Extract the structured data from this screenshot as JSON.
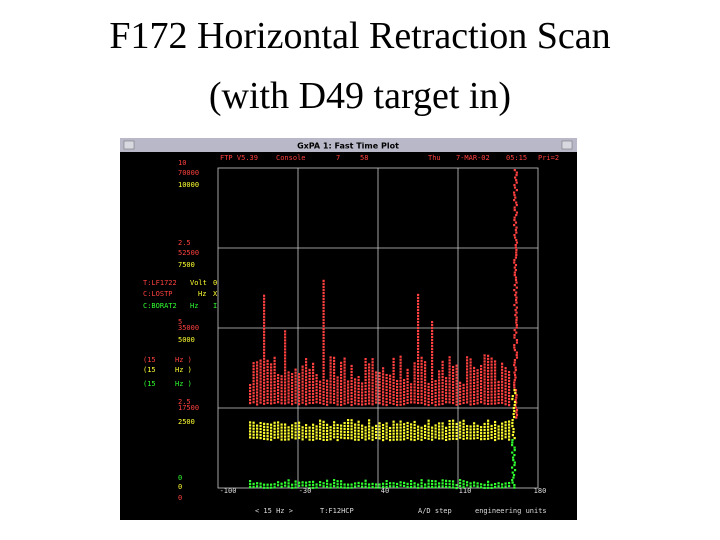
{
  "header": {
    "title": [
      "F172 Horizontal Retraction Scan",
      "(with D49 target in)"
    ]
  },
  "window": {
    "title": "GxPA 1: Fast Time Plot",
    "status": [
      "FTP V5.39",
      "Console",
      "7",
      "58",
      "Thu",
      "7-MAR-02",
      "05:15",
      "Pri=2"
    ],
    "y_labels": [
      "10",
      "70000",
      "10000",
      "2.5",
      "52500",
      "7500",
      "5",
      "35000",
      "5000",
      "2.5",
      "17500",
      "2500",
      "0",
      "0",
      "0"
    ],
    "channels": [
      "T:LF1722",
      "Volt",
      "0",
      "C:LOSTP",
      "Hz",
      "X",
      "C:BORAT2",
      "Hz",
      "I"
    ],
    "rates": [
      "(15",
      "Hz )",
      "(15",
      "Hz )",
      "(15",
      "Hz )"
    ],
    "x_labels": [
      "-100",
      "-30",
      "40",
      "110",
      "180"
    ],
    "footer": [
      "< 15  Hz >",
      "T:F12HCP",
      "A/D step",
      "engineering units"
    ]
  }
}
